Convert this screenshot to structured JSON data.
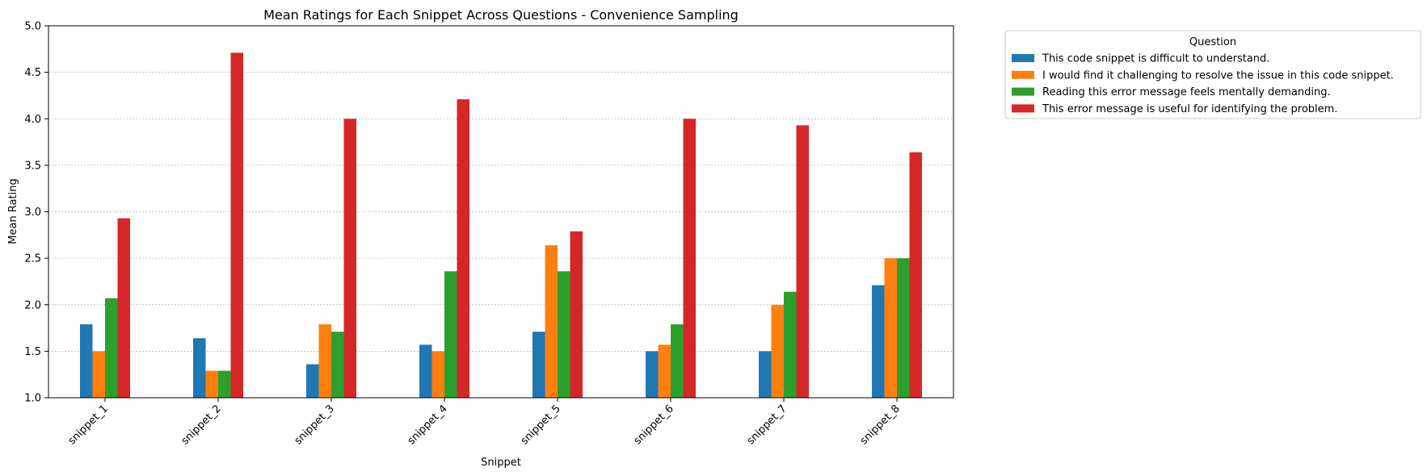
{
  "chart_data": {
    "type": "bar",
    "title": "Mean Ratings for Each Snippet Across Questions - Convenience Sampling",
    "xlabel": "Snippet",
    "ylabel": "Mean Rating",
    "ylim": [
      1.0,
      5.0
    ],
    "yticks": [
      "1.0",
      "1.5",
      "2.0",
      "2.5",
      "3.0",
      "3.5",
      "4.0",
      "4.5",
      "5.0"
    ],
    "grid": "horizontal dotted",
    "legend_title": "Question",
    "legend_position": "outside top-right",
    "categories": [
      "snippet_1",
      "snippet_2",
      "snippet_3",
      "snippet_4",
      "snippet_5",
      "snippet_6",
      "snippet_7",
      "snippet_8"
    ],
    "series": [
      {
        "name": "This code snippet is difficult to understand.",
        "color": "#1f77b4",
        "values": [
          1.79,
          1.64,
          1.36,
          1.57,
          1.71,
          1.5,
          1.5,
          2.21
        ]
      },
      {
        "name": "I would find it challenging to resolve the issue in this code snippet.",
        "color": "#ff7f0e",
        "values": [
          1.5,
          1.29,
          1.79,
          1.5,
          2.64,
          1.57,
          2.0,
          2.5
        ]
      },
      {
        "name": "Reading this error message feels mentally demanding.",
        "color": "#2ca02c",
        "values": [
          2.07,
          1.29,
          1.71,
          2.36,
          2.36,
          1.79,
          2.14,
          2.5
        ]
      },
      {
        "name": "This error message is useful for identifying the problem.",
        "color": "#d62728",
        "values": [
          2.93,
          4.71,
          4.0,
          4.21,
          2.79,
          4.0,
          3.93,
          3.64
        ]
      }
    ]
  }
}
